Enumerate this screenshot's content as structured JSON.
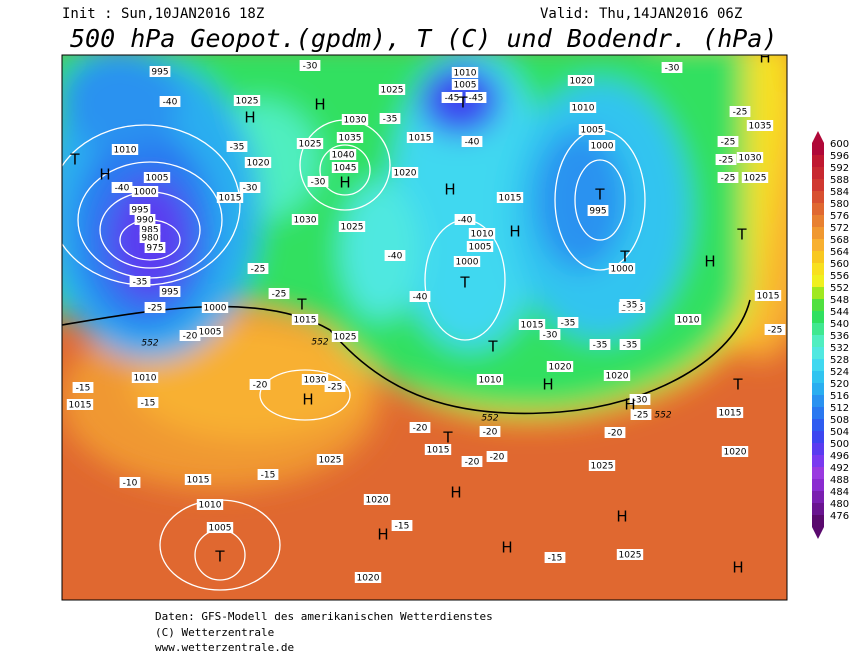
{
  "header": {
    "init": "Init : Sun,10JAN2016 18Z",
    "valid": "Valid: Thu,14JAN2016 06Z",
    "title": "500 hPa Geopot.(gpdm), T (C) und Bodendr. (hPa)"
  },
  "footer": [
    "Daten: GFS-Modell des amerikanischen Wetterdienstes",
    "(C) Wetterzentrale",
    "www.wetterzentrale.de"
  ],
  "colorbar": {
    "levels": [
      476,
      480,
      484,
      488,
      492,
      496,
      500,
      504,
      508,
      512,
      516,
      520,
      524,
      528,
      532,
      536,
      540,
      544,
      548,
      552,
      556,
      560,
      564,
      568,
      572,
      576,
      580,
      584,
      588,
      592,
      596,
      600
    ],
    "colors": [
      "#5a0a6e",
      "#6a1490",
      "#7a1fb0",
      "#8a2bd0",
      "#9a3ae0",
      "#7a3af0",
      "#5a3cf0",
      "#3c46f0",
      "#2e5cf0",
      "#2a78f0",
      "#2a92f0",
      "#2aaef0",
      "#30c4f0",
      "#40d8f0",
      "#50e8e0",
      "#50eec0",
      "#40e890",
      "#30e060",
      "#50e040",
      "#a0e820",
      "#f0f020",
      "#f8e020",
      "#f8c820",
      "#f8b030",
      "#f09830",
      "#e88030",
      "#e06830",
      "#d85030",
      "#d03830",
      "#c82830",
      "#c01830",
      "#b00838"
    ]
  },
  "map_labels": {
    "isobars": [
      "995",
      "1010",
      "1005",
      "1000",
      "995",
      "990",
      "985",
      "980",
      "975",
      "995",
      "1000",
      "1005",
      "1010",
      "1015",
      "1015",
      "1025",
      "1030",
      "1025",
      "1020",
      "1015",
      "1010",
      "1005",
      "1020",
      "1025",
      "1025",
      "1020",
      "1015",
      "1010",
      "1005",
      "1000",
      "995",
      "1000",
      "1005",
      "1010",
      "1020",
      "1015",
      "1010",
      "1005",
      "1025",
      "1020",
      "1015",
      "1025",
      "1035",
      "1040",
      "1045",
      "1030",
      "1025",
      "1030",
      "1025",
      "1020",
      "1015",
      "1010",
      "1005",
      "1000",
      "1015",
      "1020",
      "1020",
      "1010",
      "1015",
      "1035",
      "1030",
      "1025",
      "1015"
    ],
    "temperatures": [
      "-40",
      "-35",
      "-30",
      "-25",
      "-25",
      "-25",
      "-20",
      "-15",
      "-15",
      "-20",
      "-25",
      "-20",
      "-35",
      "-30",
      "-40",
      "-45",
      "-45",
      "-40",
      "-40",
      "-40",
      "-35",
      "-35",
      "-35",
      "-30",
      "-30",
      "-25",
      "-20",
      "-20",
      "-20",
      "-20",
      "-15",
      "-15",
      "-10",
      "-15",
      "-30",
      "-25",
      "-25",
      "-25",
      "-25",
      "-35",
      "-40",
      "-30",
      "-35",
      "-25"
    ],
    "contours": [
      "552",
      "552",
      "552",
      "552"
    ],
    "systems": [
      "T",
      "H",
      "H",
      "H",
      "H",
      "H",
      "T",
      "T",
      "T",
      "H",
      "T",
      "T",
      "T",
      "H",
      "T",
      "H",
      "H",
      "H",
      "H",
      "H",
      "H",
      "T",
      "H",
      "H",
      "T",
      "T",
      "H"
    ]
  }
}
